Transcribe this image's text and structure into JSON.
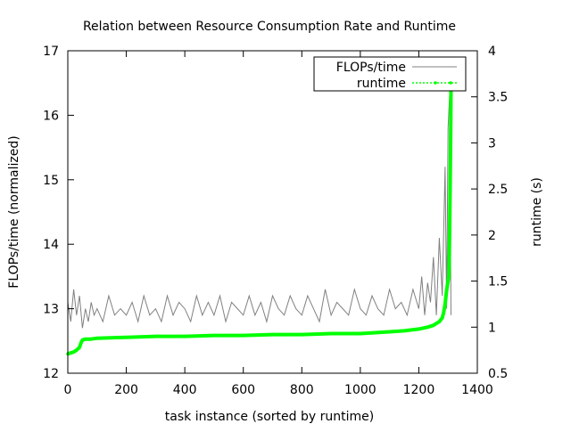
{
  "chart_data": {
    "type": "line",
    "title": "Relation between Resource Consumption Rate and Runtime",
    "xlabel": "task instance (sorted by runtime)",
    "ylabel": "FLOPs/time (normalized)",
    "y2label": "runtime (s)",
    "xlim": [
      0,
      1400
    ],
    "ylim": [
      12,
      17
    ],
    "y2lim": [
      0.5,
      4
    ],
    "x_ticks": [
      "0",
      "200",
      "400",
      "600",
      "800",
      "1000",
      "1200",
      "1400"
    ],
    "y_ticks": [
      "12",
      "13",
      "14",
      "15",
      "16",
      "17"
    ],
    "y2_ticks": [
      "0.5",
      "1",
      "1.5",
      "2",
      "2.5",
      "3",
      "3.5",
      "4"
    ],
    "grid": false,
    "legend_position": "top-right",
    "colors": {
      "flops": "#808080",
      "runtime": "#00ff00"
    },
    "series": [
      {
        "name": "FLOPs/time",
        "axis": "left",
        "style": "line",
        "x": [
          0,
          10,
          20,
          30,
          40,
          50,
          60,
          70,
          80,
          90,
          100,
          120,
          140,
          160,
          180,
          200,
          220,
          240,
          260,
          280,
          300,
          320,
          340,
          360,
          380,
          400,
          420,
          440,
          460,
          480,
          500,
          520,
          540,
          560,
          580,
          600,
          620,
          640,
          660,
          680,
          700,
          720,
          740,
          760,
          780,
          800,
          820,
          840,
          860,
          880,
          900,
          920,
          940,
          960,
          980,
          1000,
          1020,
          1040,
          1060,
          1080,
          1100,
          1120,
          1140,
          1160,
          1180,
          1200,
          1210,
          1220,
          1230,
          1240,
          1250,
          1260,
          1270,
          1280,
          1290,
          1295,
          1300,
          1305,
          1310
        ],
        "values": [
          13.1,
          12.8,
          13.3,
          12.9,
          13.2,
          12.7,
          13.0,
          12.8,
          13.1,
          12.9,
          13.0,
          12.8,
          13.2,
          12.9,
          13.0,
          12.9,
          13.1,
          12.8,
          13.2,
          12.9,
          13.0,
          12.8,
          13.2,
          12.9,
          13.1,
          13.0,
          12.8,
          13.2,
          12.9,
          13.1,
          12.9,
          13.2,
          12.8,
          13.1,
          13.0,
          12.9,
          13.2,
          12.9,
          13.1,
          12.8,
          13.2,
          13.0,
          12.9,
          13.2,
          13.0,
          12.9,
          13.2,
          13.0,
          12.8,
          13.3,
          12.9,
          13.1,
          13.0,
          12.9,
          13.3,
          13.0,
          12.9,
          13.2,
          13.0,
          12.9,
          13.3,
          13.0,
          13.1,
          12.9,
          13.3,
          13.0,
          13.5,
          12.9,
          13.4,
          13.1,
          13.8,
          12.9,
          14.1,
          13.2,
          15.2,
          13.0,
          15.8,
          16.3,
          12.9
        ]
      },
      {
        "name": "runtime",
        "axis": "right",
        "style": "linespoints",
        "x": [
          0,
          10,
          20,
          30,
          40,
          45,
          50,
          60,
          80,
          100,
          200,
          300,
          400,
          500,
          600,
          700,
          800,
          900,
          1000,
          1050,
          1100,
          1150,
          1200,
          1230,
          1250,
          1270,
          1280,
          1285,
          1290,
          1295,
          1300,
          1303,
          1305,
          1307,
          1309,
          1310,
          1312
        ],
        "values": [
          0.71,
          0.72,
          0.73,
          0.75,
          0.78,
          0.83,
          0.86,
          0.87,
          0.87,
          0.88,
          0.89,
          0.9,
          0.9,
          0.91,
          0.91,
          0.92,
          0.92,
          0.93,
          0.93,
          0.94,
          0.95,
          0.96,
          0.98,
          1.0,
          1.02,
          1.06,
          1.1,
          1.16,
          1.25,
          1.4,
          1.5,
          1.55,
          2.0,
          2.5,
          3.15,
          3.6,
          3.8
        ]
      }
    ]
  }
}
